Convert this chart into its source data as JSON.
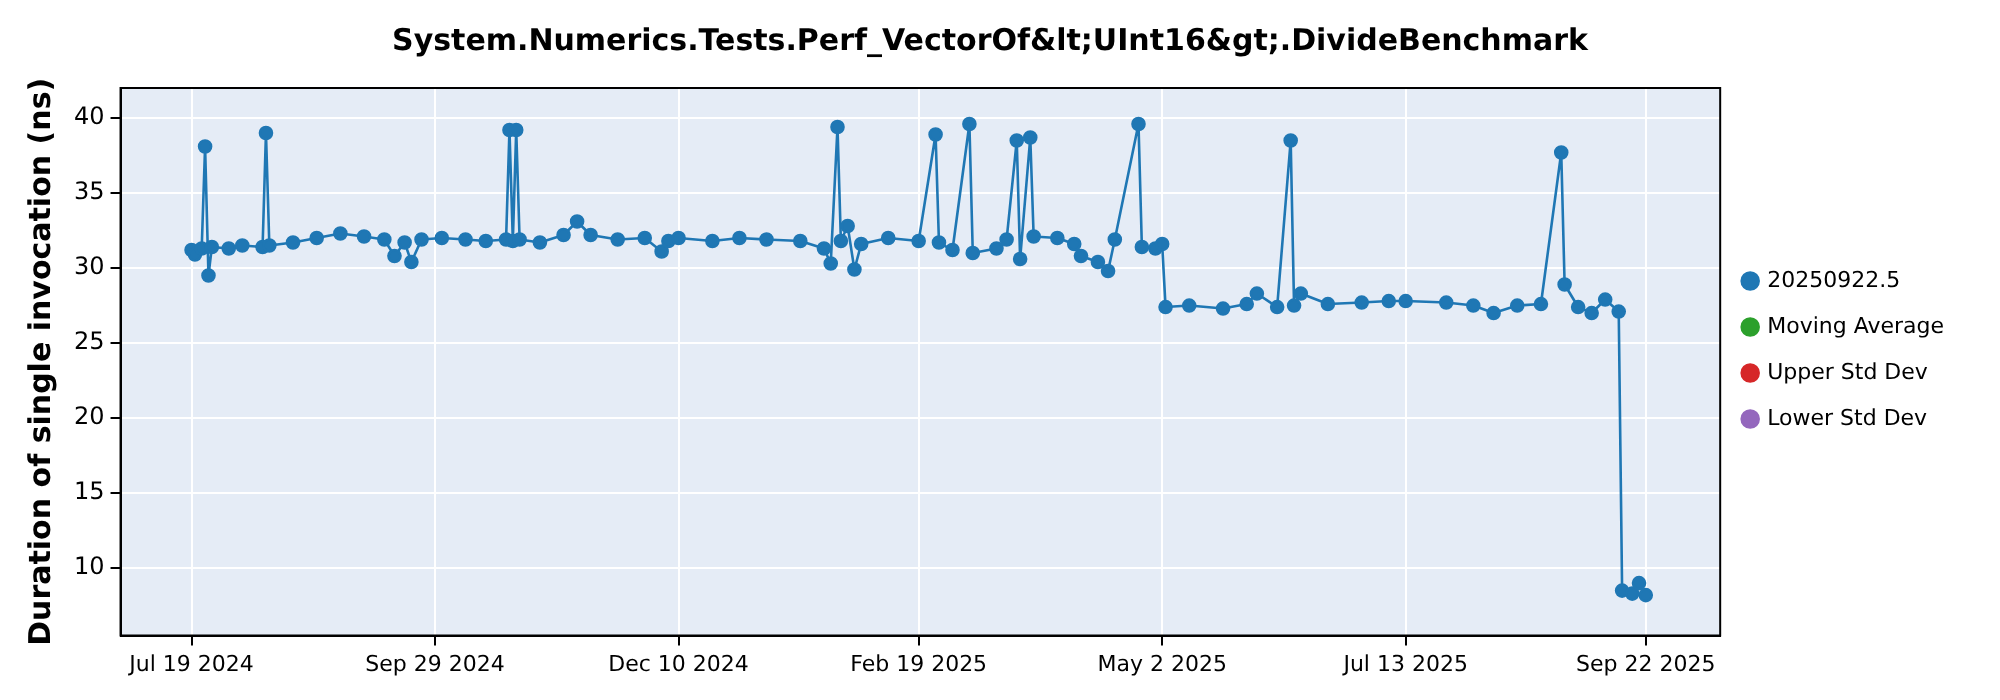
{
  "chart_data": {
    "type": "line",
    "title": "System.Numerics.Tests.Perf_VectorOf&lt;UInt16&gt;.DivideBenchmark",
    "ylabel": "Duration of single invocation (ns)",
    "x": [
      "2024-07-19",
      "2024-07-20",
      "2024-07-22",
      "2024-07-23",
      "2024-07-24",
      "2024-07-25",
      "2024-07-30",
      "2024-08-03",
      "2024-08-09",
      "2024-08-10",
      "2024-08-11",
      "2024-08-18",
      "2024-08-25",
      "2024-09-01",
      "2024-09-08",
      "2024-09-14",
      "2024-09-17",
      "2024-09-20",
      "2024-09-22",
      "2024-09-25",
      "2024-10-01",
      "2024-10-08",
      "2024-10-14",
      "2024-10-20",
      "2024-10-21",
      "2024-10-22",
      "2024-10-23",
      "2024-10-24",
      "2024-10-30",
      "2024-11-06",
      "2024-11-10",
      "2024-11-14",
      "2024-11-22",
      "2024-11-30",
      "2024-12-05",
      "2024-12-07",
      "2024-12-10",
      "2024-12-20",
      "2024-12-28",
      "2025-01-05",
      "2025-01-15",
      "2025-01-22",
      "2025-01-24",
      "2025-01-26",
      "2025-01-27",
      "2025-01-29",
      "2025-01-31",
      "2025-02-02",
      "2025-02-10",
      "2025-02-19",
      "2025-02-24",
      "2025-02-25",
      "2025-03-01",
      "2025-03-06",
      "2025-03-07",
      "2025-03-14",
      "2025-03-17",
      "2025-03-20",
      "2025-03-21",
      "2025-03-24",
      "2025-03-25",
      "2025-04-01",
      "2025-04-06",
      "2025-04-08",
      "2025-04-13",
      "2025-04-16",
      "2025-04-18",
      "2025-04-25",
      "2025-04-26",
      "2025-04-30",
      "2025-05-02",
      "2025-05-03",
      "2025-05-10",
      "2025-05-20",
      "2025-05-27",
      "2025-05-30",
      "2025-06-05",
      "2025-06-09",
      "2025-06-10",
      "2025-06-12",
      "2025-06-20",
      "2025-06-30",
      "2025-07-08",
      "2025-07-13",
      "2025-07-25",
      "2025-08-02",
      "2025-08-08",
      "2025-08-15",
      "2025-08-22",
      "2025-08-28",
      "2025-08-29",
      "2025-09-02",
      "2025-09-06",
      "2025-09-10",
      "2025-09-14",
      "2025-09-15",
      "2025-09-18",
      "2025-09-20",
      "2025-09-22"
    ],
    "series": [
      {
        "name": "20250922.5",
        "color": "#1f77b4",
        "values": [
          31.2,
          30.9,
          31.3,
          38.1,
          29.5,
          31.4,
          31.3,
          31.5,
          31.4,
          39.0,
          31.5,
          31.7,
          32.0,
          32.3,
          32.1,
          31.9,
          30.8,
          31.7,
          30.4,
          31.9,
          32.0,
          31.9,
          31.8,
          31.9,
          39.2,
          31.8,
          39.2,
          31.9,
          31.7,
          32.2,
          33.1,
          32.2,
          31.9,
          32.0,
          31.1,
          31.8,
          32.0,
          31.8,
          32.0,
          31.9,
          31.8,
          31.3,
          30.3,
          39.4,
          31.8,
          32.8,
          29.9,
          31.6,
          32.0,
          31.8,
          38.9,
          31.7,
          31.2,
          39.6,
          31.0,
          31.3,
          31.9,
          38.5,
          30.6,
          38.7,
          32.1,
          32.0,
          31.6,
          30.8,
          30.4,
          29.8,
          31.9,
          39.6,
          31.4,
          31.3,
          31.6,
          27.4,
          27.5,
          27.3,
          27.6,
          28.3,
          27.4,
          38.5,
          27.5,
          28.3,
          27.6,
          27.7,
          27.8,
          27.8,
          27.7,
          27.5,
          27.0,
          27.5,
          27.6,
          37.7,
          28.9,
          27.4,
          27.0,
          27.9,
          27.1,
          8.5,
          8.3,
          9.0,
          8.2
        ]
      },
      {
        "name": "Moving Average",
        "color": "#2ca02c",
        "values": [
          null,
          null,
          null,
          null,
          null,
          null,
          null,
          null,
          null,
          null,
          null,
          null,
          null,
          null,
          null,
          null,
          null,
          null,
          null,
          null,
          null,
          null,
          null,
          null,
          null,
          null,
          null,
          null,
          null,
          null,
          null,
          null,
          null,
          null,
          null,
          null,
          null,
          null,
          null,
          null,
          null,
          null,
          null,
          null,
          null,
          null,
          null,
          null,
          null,
          null,
          null,
          null,
          null,
          null,
          null,
          null,
          null,
          null,
          null,
          null,
          null,
          null,
          null,
          null,
          null,
          null,
          null,
          null,
          null,
          null,
          null,
          null,
          null,
          null,
          null,
          null,
          null,
          null,
          null,
          null,
          null,
          null,
          null,
          null,
          null,
          null,
          null,
          null,
          null,
          null,
          null,
          null,
          null,
          null,
          null,
          null,
          null,
          null,
          null
        ]
      },
      {
        "name": "Upper Std Dev",
        "color": "#d62728",
        "values": [
          null,
          null,
          null,
          null,
          null,
          null,
          null,
          null,
          null,
          null,
          null,
          null,
          null,
          null,
          null,
          null,
          null,
          null,
          null,
          null,
          null,
          null,
          null,
          null,
          null,
          null,
          null,
          null,
          null,
          null,
          null,
          null,
          null,
          null,
          null,
          null,
          null,
          null,
          null,
          null,
          null,
          null,
          null,
          null,
          null,
          null,
          null,
          null,
          null,
          null,
          null,
          null,
          null,
          null,
          null,
          null,
          null,
          null,
          null,
          null,
          null,
          null,
          null,
          null,
          null,
          null,
          null,
          null,
          null,
          null,
          null,
          null,
          null,
          null,
          null,
          null,
          null,
          null,
          null,
          null,
          null,
          null,
          null,
          null,
          null,
          null,
          null,
          null,
          null,
          null,
          null,
          null,
          null,
          null,
          null,
          null,
          null,
          null,
          null
        ]
      },
      {
        "name": "Lower Std Dev",
        "color": "#9467bd",
        "values": [
          null,
          null,
          null,
          null,
          null,
          null,
          null,
          null,
          null,
          null,
          null,
          null,
          null,
          null,
          null,
          null,
          null,
          null,
          null,
          null,
          null,
          null,
          null,
          null,
          null,
          null,
          null,
          null,
          null,
          null,
          null,
          null,
          null,
          null,
          null,
          null,
          null,
          null,
          null,
          null,
          null,
          null,
          null,
          null,
          null,
          null,
          null,
          null,
          null,
          null,
          null,
          null,
          null,
          null,
          null,
          null,
          null,
          null,
          null,
          null,
          null,
          null,
          null,
          null,
          null,
          null,
          null,
          null,
          null,
          null,
          null,
          null,
          null,
          null,
          null,
          null,
          null,
          null,
          null,
          null,
          null,
          null,
          null,
          null,
          null,
          null,
          null,
          null,
          null,
          null,
          null,
          null,
          null,
          null,
          null,
          null,
          null,
          null,
          null
        ]
      }
    ],
    "xlim": [
      "2024-06-28",
      "2025-10-14"
    ],
    "xticks": [
      {
        "value": "2024-07-19",
        "label": "Jul 19 2024"
      },
      {
        "value": "2024-09-29",
        "label": "Sep 29 2024"
      },
      {
        "value": "2024-12-10",
        "label": "Dec 10 2024"
      },
      {
        "value": "2025-02-19",
        "label": "Feb 19 2025"
      },
      {
        "value": "2025-05-02",
        "label": "May 2 2025"
      },
      {
        "value": "2025-07-13",
        "label": "Jul 13 2025"
      },
      {
        "value": "2025-09-22",
        "label": "Sep 22 2025"
      }
    ],
    "ylim": [
      5.5,
      42
    ],
    "yticks": [
      10,
      15,
      20,
      25,
      30,
      35,
      40
    ],
    "grid": true,
    "legend": "right",
    "marker": "circle",
    "line_style": "solid"
  }
}
